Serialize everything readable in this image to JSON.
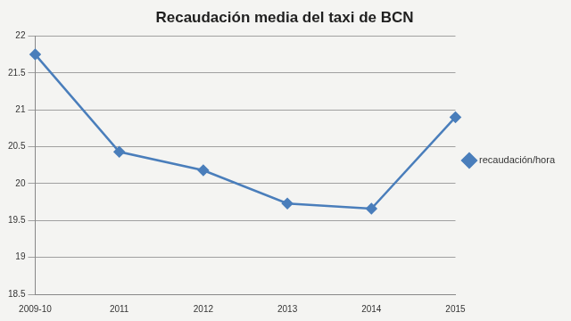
{
  "chart_data": {
    "type": "line",
    "title": "Recaudación media del taxi de BCN",
    "categories": [
      "2009-10",
      "2011",
      "2012",
      "2013",
      "2014",
      "2015"
    ],
    "series": [
      {
        "name": "recaudación/hora",
        "color": "#4a7ebb",
        "marker": "diamond",
        "values": [
          21.75,
          20.43,
          20.18,
          19.73,
          19.66,
          20.9
        ]
      }
    ],
    "ylim": [
      18.5,
      22
    ],
    "yticks": [
      18.5,
      19,
      19.5,
      20,
      20.5,
      21,
      21.5,
      22
    ],
    "grid": true,
    "legend": "right"
  }
}
